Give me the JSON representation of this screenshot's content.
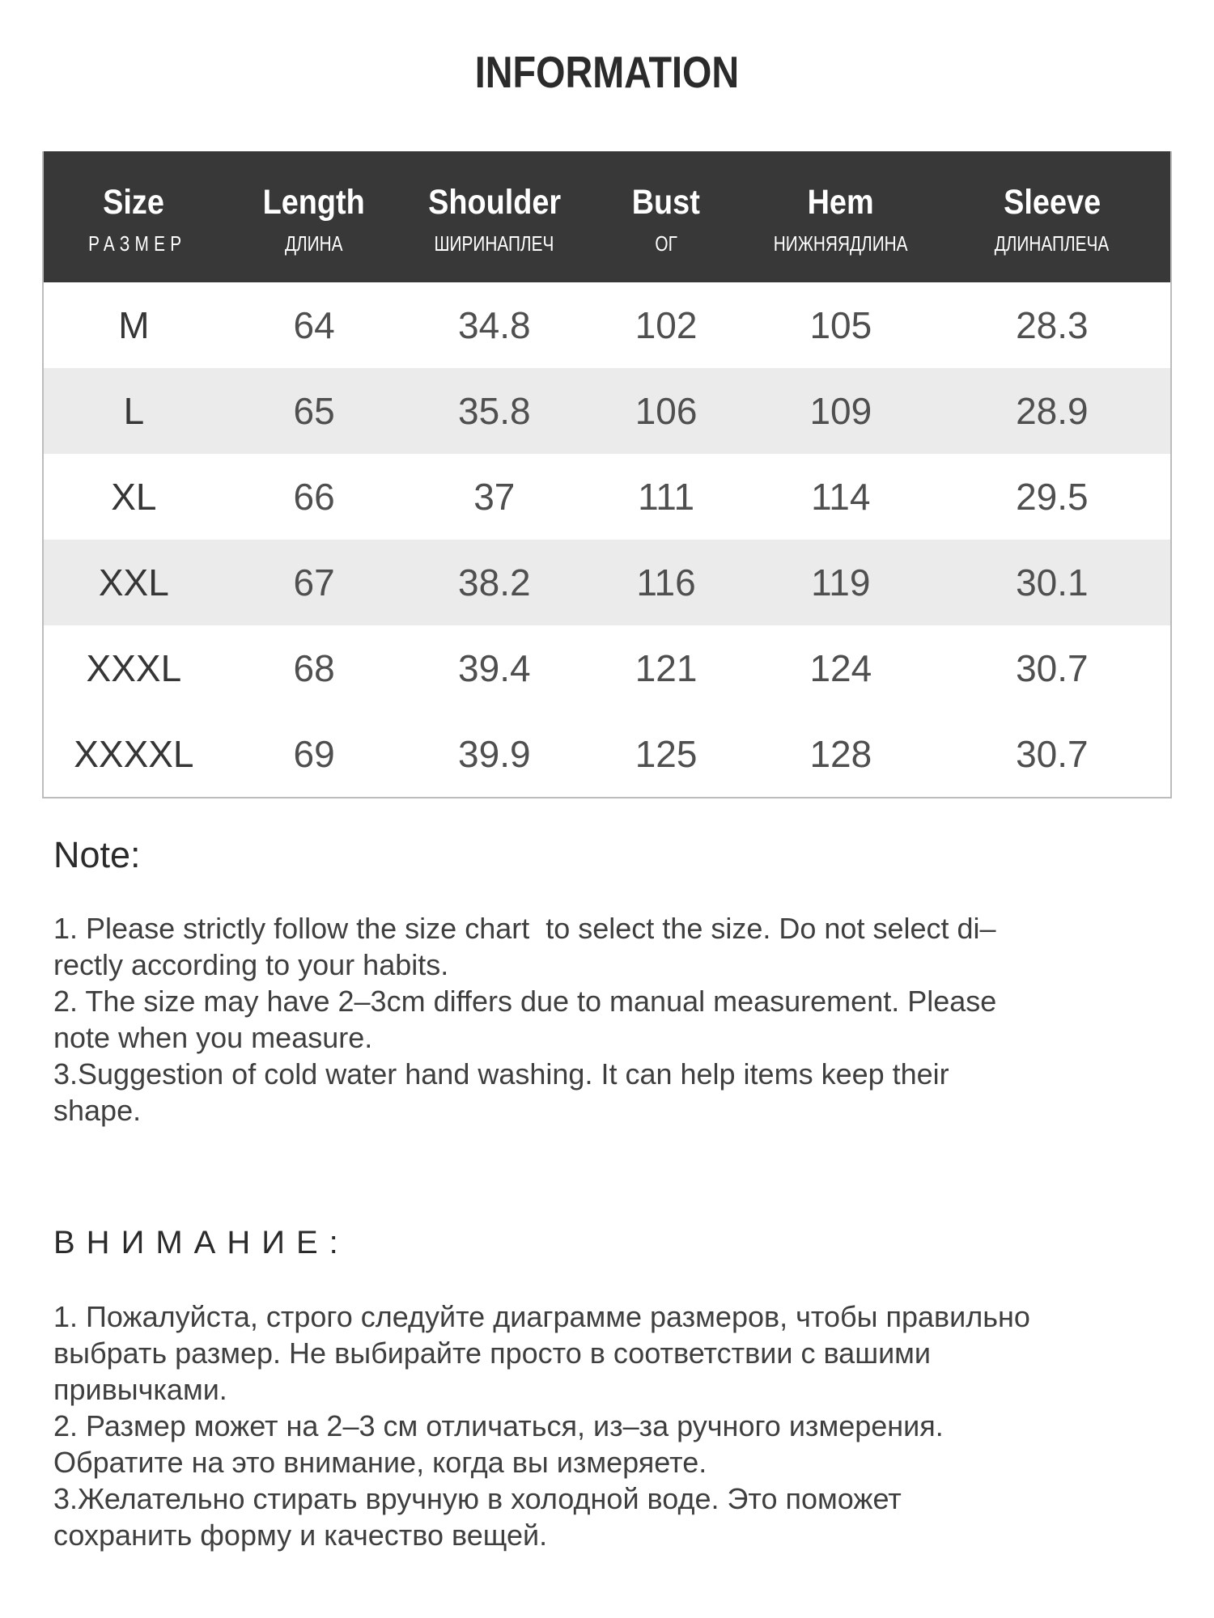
{
  "page": {
    "title": "INFORMATION"
  },
  "colors": {
    "header_bg": "#383838",
    "header_text": "#ffffff",
    "stripe_bg": "#ebebeb",
    "table_border": "#bcbcbc",
    "title_text": "#2b2b2b",
    "body_text": "#3f3f3f"
  },
  "size_table": {
    "columns": [
      {
        "en": "Size",
        "ru": "РАЗМЕР"
      },
      {
        "en": "Length",
        "ru": "ДЛИНА"
      },
      {
        "en": "Shoulder",
        "ru": "ШИРИНАПЛЕЧ"
      },
      {
        "en": "Bust",
        "ru": "ОГ"
      },
      {
        "en": "Hem",
        "ru": "НИЖНЯЯДЛИНА"
      },
      {
        "en": "Sleeve",
        "ru": "ДЛИНАПЛЕЧА"
      }
    ],
    "rows": [
      {
        "size": "M",
        "length": "64",
        "shoulder": "34.8",
        "bust": "102",
        "hem": "105",
        "sleeve": "28.3",
        "shaded": false
      },
      {
        "size": "L",
        "length": "65",
        "shoulder": "35.8",
        "bust": "106",
        "hem": "109",
        "sleeve": "28.9",
        "shaded": true
      },
      {
        "size": "XL",
        "length": "66",
        "shoulder": "37",
        "bust": "111",
        "hem": "114",
        "sleeve": "29.5",
        "shaded": false
      },
      {
        "size": "XXL",
        "length": "67",
        "shoulder": "38.2",
        "bust": "116",
        "hem": "119",
        "sleeve": "30.1",
        "shaded": true
      },
      {
        "size": "XXXL",
        "length": "68",
        "shoulder": "39.4",
        "bust": "121",
        "hem": "124",
        "sleeve": "30.7",
        "shaded": false
      },
      {
        "size": "XXXXL",
        "length": "69",
        "shoulder": "39.9",
        "bust": "125",
        "hem": "128",
        "sleeve": "30.7",
        "shaded": false
      }
    ]
  },
  "notes_en": {
    "heading": "Note:",
    "body": "1. Please strictly follow the size chart  to select the size. Do not select di–\nrectly according to your habits.\n2. The size may have 2–3cm differs due to manual measurement. Please\nnote when you measure.\n3.Suggestion of cold water hand washing. It can help items keep their\nshape."
  },
  "notes_ru": {
    "heading": "ВНИМАНИЕ:",
    "body": "1. Пожалуйста, строго следуйте диаграмме размеров, чтобы правильно\nвыбрать размер. Не выбирайте просто в соответствии с вашими\nпривычками.\n2. Размер может на 2–3 см отличаться, из–за ручного измерения.\nОбратите на это внимание, когда вы измеряете.\n3.Желательно стирать вручную в холодной воде. Это поможет\nсохранить форму и качество вещей."
  }
}
